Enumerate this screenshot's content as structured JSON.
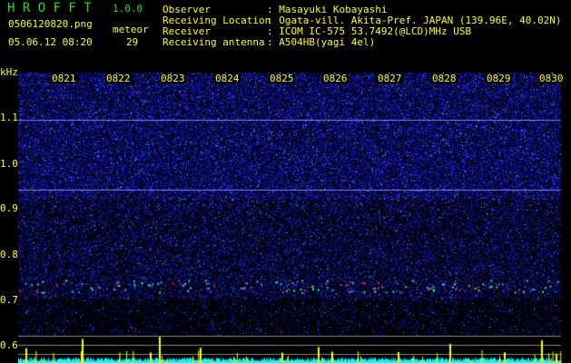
{
  "app": {
    "title": "H R O F F T",
    "version": "1.0.0"
  },
  "file": {
    "name": "0506120820.png",
    "datetime": "05.06.12 08:20"
  },
  "meteor": {
    "label": "meteor",
    "count": "29"
  },
  "info": [
    {
      "label": "Observer",
      "value": ": Masayuki Kobayashi"
    },
    {
      "label": "Receiving Location",
      "value": ": Ogata-vill. Akita-Pref. JAPAN (139.96E, 40.02N)"
    },
    {
      "label": "Receiver",
      "value": ": ICOM IC-575 53.7492(@LCD)MHz USB"
    },
    {
      "label": "Receiving antenna",
      "value": ": A504HB(yagi 4el)"
    }
  ],
  "axis": {
    "unit": "kHz",
    "y_labels": [
      "1.1",
      "1.0",
      "0.9",
      "0.8",
      "0.7",
      "0.6"
    ],
    "time_labels": [
      "0821",
      "0822",
      "0823",
      "0824",
      "0825",
      "0826",
      "0827",
      "0828",
      "0829",
      "0830"
    ]
  },
  "colors": {
    "text": "#ffff00",
    "title": "#22dd22",
    "bars": "#ffff00",
    "baseline": "#00ffff"
  }
}
